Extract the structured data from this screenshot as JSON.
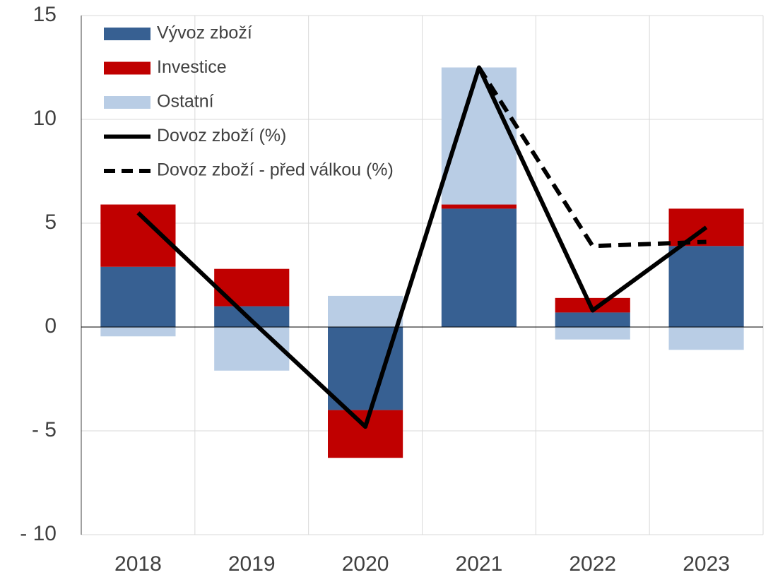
{
  "chart_data": {
    "type": "bar",
    "categories": [
      "2018",
      "2019",
      "2020",
      "2021",
      "2022",
      "2023"
    ],
    "series": [
      {
        "name": "Vývoz zboží",
        "type": "bar",
        "color": "#376092",
        "values": [
          2.9,
          1.0,
          -4.0,
          5.7,
          0.7,
          3.9
        ]
      },
      {
        "name": "Investice",
        "type": "bar",
        "color": "#c00000",
        "values": [
          3.0,
          1.8,
          -2.3,
          0.2,
          0.7,
          1.8
        ]
      },
      {
        "name": "Ostatní",
        "type": "bar",
        "color": "#b9cde5",
        "values": [
          -0.45,
          -2.1,
          1.5,
          6.6,
          -0.6,
          -1.1
        ]
      },
      {
        "name": "Dovoz zboží (%)",
        "type": "line",
        "color": "#000000",
        "dash": false,
        "values": [
          5.5,
          0.3,
          -4.8,
          12.5,
          0.8,
          4.8
        ]
      },
      {
        "name": "Dovoz zboží - před válkou (%)",
        "type": "line",
        "color": "#000000",
        "dash": true,
        "values": [
          null,
          null,
          null,
          12.5,
          3.9,
          4.1
        ]
      }
    ],
    "ylim": [
      -10,
      15
    ],
    "yticks": [
      {
        "value": -10,
        "label": "- 10"
      },
      {
        "value": -5,
        "label": "- 5"
      },
      0,
      5,
      10,
      15
    ],
    "grid": true,
    "stacked": true,
    "legend": "top-left"
  }
}
